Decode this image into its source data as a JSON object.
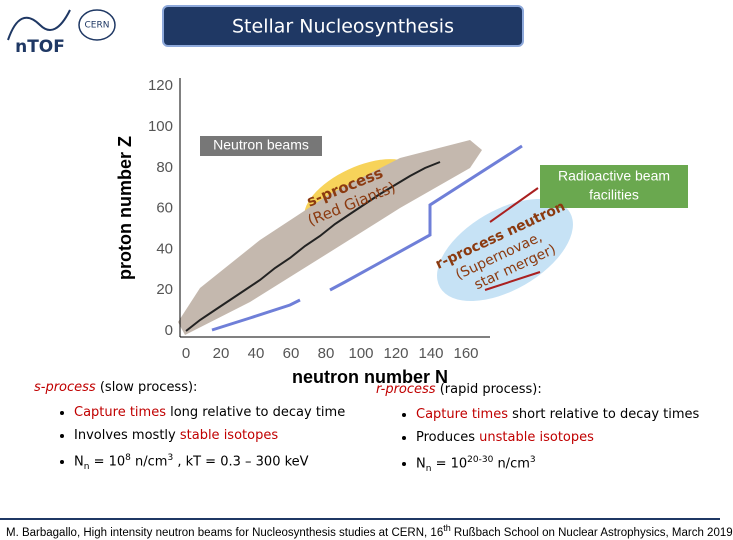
{
  "header": {
    "title": "Stellar Nucleosynthesis",
    "logo_left": "nTOF",
    "logo_right": "CERN"
  },
  "figure": {
    "y_label": "proton number Z",
    "x_label": "neutron number N",
    "yticks": [
      0,
      20,
      40,
      60,
      80,
      100,
      120
    ],
    "xticks": [
      0,
      20,
      40,
      60,
      80,
      100,
      120,
      140,
      160
    ],
    "neutron_beams": "Neutron beams",
    "radioactive": [
      "Radioactive beam",
      "facilities"
    ],
    "s_process": [
      "s-process",
      "(Red Giants)"
    ],
    "r_process": [
      "r-process neutron",
      "(Supernovae,",
      "star merger)"
    ]
  },
  "left": {
    "heading": [
      {
        "text": "s-process",
        "style": "italic-red"
      },
      {
        "text": " (slow process):"
      }
    ],
    "bullets": [
      [
        {
          "text": "Capture times",
          "style": "red"
        },
        {
          "text": " long relative to decay time"
        }
      ],
      [
        {
          "text": "Involves mostly "
        },
        {
          "text": "stable isotopes",
          "style": "red"
        }
      ],
      [
        {
          "text": "N"
        },
        {
          "text": "n",
          "style": "sub"
        },
        {
          "text": " = 10"
        },
        {
          "text": "8",
          "style": "sup"
        },
        {
          "text": " n/cm"
        },
        {
          "text": "3",
          "style": "sup"
        },
        {
          "text": " , kT = 0.3 – 300 keV"
        }
      ]
    ]
  },
  "right": {
    "heading": [
      {
        "text": "r-process",
        "style": "italic-red"
      },
      {
        "text": " (rapid process):"
      }
    ],
    "bullets": [
      [
        {
          "text": "Capture times",
          "style": "red"
        },
        {
          "text": " short relative to decay times"
        }
      ],
      [
        {
          "text": "Produces "
        },
        {
          "text": "unstable isotopes",
          "style": "red"
        }
      ],
      [
        {
          "text": "N"
        },
        {
          "text": "n",
          "style": "sub"
        },
        {
          "text": " = 10"
        },
        {
          "text": "20-30",
          "style": "sup"
        },
        {
          "text": " n/cm"
        },
        {
          "text": "3",
          "style": "sup"
        }
      ]
    ]
  },
  "footer": [
    {
      "text": "M. Barbagallo, High intensity neutron beams for Nucleosynthesis studies at CERN, 16"
    },
    {
      "text": "th",
      "style": "sup"
    },
    {
      "text": " Rußbach School on Nuclear Astrophysics, March 2019"
    }
  ]
}
